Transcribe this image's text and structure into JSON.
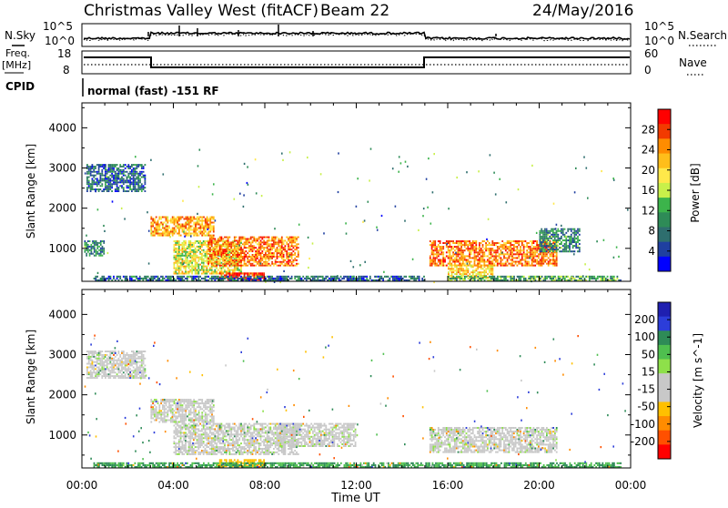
{
  "header": {
    "title": "Christmas Valley West (fitACF)",
    "beam": "Beam 22",
    "date": "24/May/2016"
  },
  "nsky_panel": {
    "label": "N.Sky",
    "left_ticks": [
      "10^5",
      "10^0"
    ],
    "right_ticks": [
      "10^5",
      "10^0"
    ],
    "right_label": "N.Search"
  },
  "freq_panel": {
    "label_line1": "Freq.",
    "label_line2": "[MHz]",
    "left_ticks": [
      "18",
      "8"
    ],
    "right_ticks": [
      "60",
      "0"
    ],
    "right_label": "Nave"
  },
  "cpid_panel": {
    "label": "CPID",
    "text": "normal (fast) -151 RF"
  },
  "x_axis": {
    "ticks": [
      "00:00",
      "04:00",
      "08:00",
      "12:00",
      "16:00",
      "20:00",
      "00:00"
    ],
    "label": "Time UT"
  },
  "power_panel": {
    "ylabel": "Slant Range [km]",
    "yticks": [
      "4000",
      "3000",
      "2000",
      "1000"
    ],
    "colorbar_label": "Power [dB]",
    "colorbar_ticks": [
      "28",
      "24",
      "20",
      "16",
      "12",
      "8",
      "4"
    ],
    "colorbar_colors": [
      "#ff0000",
      "#f23a00",
      "#ff8c00",
      "#ffbe1a",
      "#ffe84a",
      "#c8f04a",
      "#3cb44b",
      "#2e8b57",
      "#2e6e6e",
      "#1f3fa0",
      "#0000ff"
    ]
  },
  "velocity_panel": {
    "ylabel": "Slant Range [km]",
    "yticks": [
      "4000",
      "3000",
      "2000",
      "1000"
    ],
    "colorbar_label": "Velocity [m s^-1]",
    "colorbar_ticks": [
      "200",
      "100",
      "50",
      "15",
      "-15",
      "-50",
      "-100",
      "-200"
    ],
    "colorbar_colors": [
      "#1f1fb0",
      "#2c3dd9",
      "#2e8b57",
      "#4fbf4f",
      "#8ee04a",
      "#c8c8c8",
      "#c8c8c8",
      "#ffc000",
      "#ff8c00",
      "#ff5000",
      "#ff0000"
    ]
  },
  "chart_data": [
    {
      "type": "heatmap",
      "title": "Power",
      "xlabel": "Time UT",
      "ylabel": "Slant Range [km]",
      "xlim": [
        0,
        24
      ],
      "ylim": [
        180,
        4620
      ],
      "zlabel": "Power [dB]",
      "zticks": [
        4,
        8,
        12,
        16,
        20,
        24,
        28
      ],
      "regions": [
        {
          "t": [
            0.2,
            2.8
          ],
          "r": [
            2400,
            3100
          ],
          "z": 8
        },
        {
          "t": [
            0.1,
            1.0
          ],
          "r": [
            800,
            1200
          ],
          "z": 10
        },
        {
          "t": [
            3.0,
            5.8
          ],
          "r": [
            1300,
            1800
          ],
          "z": 22
        },
        {
          "t": [
            4.0,
            7.0
          ],
          "r": [
            350,
            1200
          ],
          "z": 18
        },
        {
          "t": [
            5.5,
            9.5
          ],
          "r": [
            550,
            1300
          ],
          "z": 24
        },
        {
          "t": [
            6.0,
            8.0
          ],
          "r": [
            200,
            400
          ],
          "z": 28
        },
        {
          "t": [
            15.2,
            20.8
          ],
          "r": [
            550,
            1200
          ],
          "z": 24
        },
        {
          "t": [
            16.0,
            18.0
          ],
          "r": [
            250,
            600
          ],
          "z": 20
        },
        {
          "t": [
            20.0,
            21.8
          ],
          "r": [
            900,
            1500
          ],
          "z": 10
        },
        {
          "t": [
            16.0,
            23.6
          ],
          "r": [
            180,
            320
          ],
          "z": 12
        },
        {
          "t": [
            0.5,
            15.0
          ],
          "r": [
            180,
            320
          ],
          "z": 8
        }
      ]
    },
    {
      "type": "heatmap",
      "title": "Velocity",
      "xlabel": "Time UT",
      "ylabel": "Slant Range [km]",
      "xlim": [
        0,
        24
      ],
      "ylim": [
        180,
        4620
      ],
      "zlabel": "Velocity [m s^-1]",
      "zticks": [
        -200,
        -100,
        -50,
        -15,
        15,
        50,
        100,
        200
      ],
      "regions": [
        {
          "t": [
            0.2,
            2.8
          ],
          "r": [
            2400,
            3100
          ],
          "z": 0
        },
        {
          "t": [
            3.0,
            5.8
          ],
          "r": [
            1300,
            1900
          ],
          "z": 0
        },
        {
          "t": [
            4.0,
            9.5
          ],
          "r": [
            500,
            1300
          ],
          "z": 0
        },
        {
          "t": [
            6.0,
            8.0
          ],
          "r": [
            200,
            400
          ],
          "z": -30
        },
        {
          "t": [
            8.5,
            12.0
          ],
          "r": [
            700,
            1300
          ],
          "z": 0
        },
        {
          "t": [
            15.2,
            20.8
          ],
          "r": [
            550,
            1200
          ],
          "z": 0
        },
        {
          "t": [
            0.5,
            23.6
          ],
          "r": [
            180,
            320
          ],
          "z": 30
        }
      ]
    }
  ]
}
